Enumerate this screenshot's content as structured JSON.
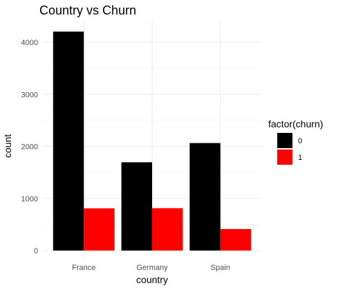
{
  "chart_data": {
    "type": "bar",
    "title": "Country vs Churn",
    "xlabel": "country",
    "ylabel": "count",
    "categories": [
      "France",
      "Germany",
      "Spain"
    ],
    "series": [
      {
        "name": "0",
        "color": "#000000",
        "values": [
          4204,
          1695,
          2064
        ]
      },
      {
        "name": "1",
        "color": "#ff0000",
        "values": [
          810,
          814,
          413
        ]
      }
    ],
    "ylim": [
      0,
      4450
    ],
    "yticks": [
      0,
      1000,
      2000,
      3000,
      4000
    ],
    "ytick_labels": [
      "0",
      "1000",
      "2000",
      "3000",
      "4000"
    ],
    "grid": true,
    "legend": {
      "title": "factor(churn)",
      "position": "right"
    }
  }
}
